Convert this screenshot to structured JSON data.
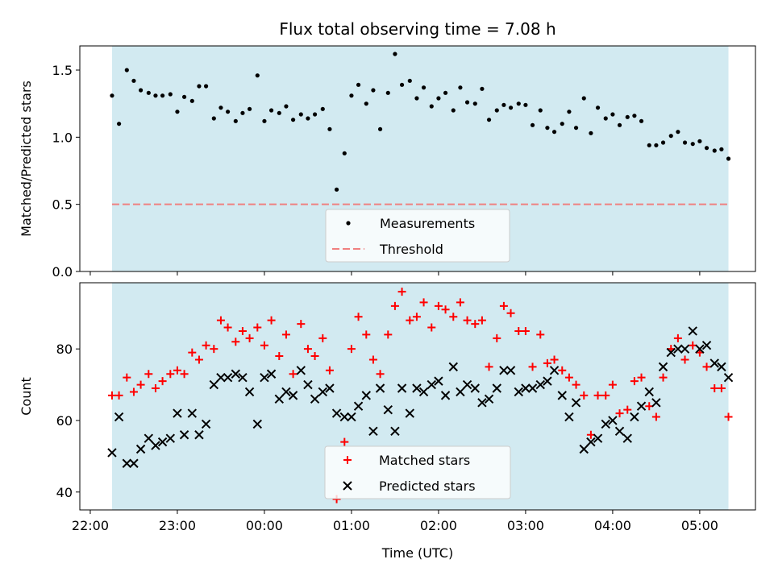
{
  "title": "Flux total observing time = 7.08 h",
  "colors": {
    "shade": "#add8e6",
    "measurement": "#000000",
    "threshold": "#f08080",
    "matched": "#ff0000",
    "predicted": "#000000"
  },
  "chart_data": [
    {
      "type": "scatter",
      "ylabel": "Matched/Predicted stars",
      "ylim": [
        0,
        1.68
      ],
      "yticks": [
        0.0,
        0.5,
        1.0,
        1.5
      ],
      "ytick_labels": [
        "0.0",
        "0.5",
        "1.0",
        "1.5"
      ],
      "xlim": [
        -0.12,
        7.64
      ],
      "shade_x": [
        0.25,
        7.33
      ],
      "threshold": 0.5,
      "legend": {
        "position": "lower-center",
        "entries": [
          "Measurements",
          "Threshold"
        ]
      },
      "series": [
        {
          "name": "Measurements",
          "x": [
            0.25,
            0.33,
            0.42,
            0.5,
            0.58,
            0.67,
            0.75,
            0.83,
            0.92,
            1.0,
            1.08,
            1.17,
            1.25,
            1.33,
            1.42,
            1.5,
            1.58,
            1.67,
            1.75,
            1.83,
            1.92,
            2.0,
            2.08,
            2.17,
            2.25,
            2.33,
            2.42,
            2.5,
            2.58,
            2.67,
            2.75,
            2.83,
            2.92,
            3.0,
            3.08,
            3.17,
            3.25,
            3.33,
            3.42,
            3.5,
            3.58,
            3.67,
            3.75,
            3.83,
            3.92,
            4.0,
            4.08,
            4.17,
            4.25,
            4.33,
            4.42,
            4.5,
            4.58,
            4.67,
            4.75,
            4.83,
            4.92,
            5.0,
            5.08,
            5.17,
            5.25,
            5.33,
            5.42,
            5.5,
            5.58,
            5.67,
            5.75,
            5.83,
            5.92,
            6.0,
            6.08,
            6.17,
            6.25,
            6.33,
            6.42,
            6.5,
            6.58,
            6.67,
            6.75,
            6.83,
            6.92,
            7.0,
            7.08,
            7.17,
            7.25,
            7.33
          ],
          "y": [
            1.31,
            1.1,
            1.5,
            1.42,
            1.35,
            1.33,
            1.31,
            1.31,
            1.32,
            1.19,
            1.3,
            1.27,
            1.38,
            1.38,
            1.14,
            1.22,
            1.19,
            1.12,
            1.18,
            1.21,
            1.46,
            1.12,
            1.2,
            1.18,
            1.23,
            1.13,
            1.17,
            1.14,
            1.17,
            1.21,
            1.06,
            0.61,
            0.88,
            1.31,
            1.39,
            1.25,
            1.35,
            1.06,
            1.33,
            1.62,
            1.39,
            1.42,
            1.29,
            1.37,
            1.23,
            1.29,
            1.33,
            1.2,
            1.37,
            1.26,
            1.25,
            1.36,
            1.13,
            1.2,
            1.24,
            1.22,
            1.25,
            1.24,
            1.09,
            1.2,
            1.07,
            1.04,
            1.1,
            1.19,
            1.07,
            1.29,
            1.03,
            1.22,
            1.14,
            1.17,
            1.09,
            1.15,
            1.16,
            1.12,
            0.94,
            0.94,
            0.96,
            1.01,
            1.04,
            0.96,
            0.95,
            0.97,
            0.92,
            0.9,
            0.91,
            0.84
          ]
        }
      ]
    },
    {
      "type": "scatter",
      "ylabel": "Count",
      "xlabel": "Time (UTC)",
      "ylim": [
        35,
        98.5
      ],
      "yticks": [
        40,
        60,
        80
      ],
      "ytick_labels": [
        "40",
        "60",
        "80"
      ],
      "xlim": [
        -0.12,
        7.64
      ],
      "xticks": [
        0,
        1,
        2,
        3,
        4,
        5,
        6,
        7
      ],
      "xtick_labels": [
        "22:00",
        "23:00",
        "00:00",
        "01:00",
        "02:00",
        "03:00",
        "04:00",
        "05:00"
      ],
      "shade_x": [
        0.25,
        7.33
      ],
      "legend": {
        "position": "lower-center",
        "entries": [
          "Matched stars",
          "Predicted stars"
        ]
      },
      "series": [
        {
          "name": "Matched stars",
          "x": [
            0.25,
            0.33,
            0.42,
            0.5,
            0.58,
            0.67,
            0.75,
            0.83,
            0.92,
            1.0,
            1.08,
            1.17,
            1.25,
            1.33,
            1.42,
            1.5,
            1.58,
            1.67,
            1.75,
            1.83,
            1.92,
            2.0,
            2.08,
            2.17,
            2.25,
            2.33,
            2.42,
            2.5,
            2.58,
            2.67,
            2.75,
            2.83,
            2.92,
            3.0,
            3.08,
            3.17,
            3.25,
            3.33,
            3.42,
            3.5,
            3.58,
            3.67,
            3.75,
            3.83,
            3.92,
            4.0,
            4.08,
            4.17,
            4.25,
            4.33,
            4.42,
            4.5,
            4.58,
            4.67,
            4.75,
            4.83,
            4.92,
            5.0,
            5.08,
            5.17,
            5.25,
            5.33,
            5.42,
            5.5,
            5.58,
            5.67,
            5.75,
            5.83,
            5.92,
            6.0,
            6.08,
            6.17,
            6.25,
            6.33,
            6.42,
            6.5,
            6.58,
            6.67,
            6.75,
            6.83,
            6.92,
            7.0,
            7.08,
            7.17,
            7.25,
            7.33
          ],
          "y": [
            67,
            67,
            72,
            68,
            70,
            73,
            69,
            71,
            73,
            74,
            73,
            79,
            77,
            81,
            80,
            88,
            86,
            82,
            85,
            83,
            86,
            81,
            88,
            78,
            84,
            73,
            87,
            80,
            78,
            83,
            74,
            38,
            54,
            80,
            89,
            84,
            77,
            73,
            84,
            92,
            96,
            88,
            89,
            93,
            86,
            92,
            91,
            89,
            93,
            88,
            87,
            88,
            75,
            83,
            92,
            90,
            85,
            85,
            75,
            84,
            76,
            77,
            74,
            72,
            70,
            67,
            56,
            67,
            67,
            70,
            62,
            63,
            71,
            72,
            64,
            61,
            72,
            80,
            83,
            77,
            81,
            79,
            75,
            69,
            69,
            61
          ]
        },
        {
          "name": "Predicted stars",
          "x": [
            0.25,
            0.33,
            0.42,
            0.5,
            0.58,
            0.67,
            0.75,
            0.83,
            0.92,
            1.0,
            1.08,
            1.17,
            1.25,
            1.33,
            1.42,
            1.5,
            1.58,
            1.67,
            1.75,
            1.83,
            1.92,
            2.0,
            2.08,
            2.17,
            2.25,
            2.33,
            2.42,
            2.5,
            2.58,
            2.67,
            2.75,
            2.83,
            2.92,
            3.0,
            3.08,
            3.17,
            3.25,
            3.33,
            3.42,
            3.5,
            3.58,
            3.67,
            3.75,
            3.83,
            3.92,
            4.0,
            4.08,
            4.17,
            4.25,
            4.33,
            4.42,
            4.5,
            4.58,
            4.67,
            4.75,
            4.83,
            4.92,
            5.0,
            5.08,
            5.17,
            5.25,
            5.33,
            5.42,
            5.5,
            5.58,
            5.67,
            5.75,
            5.83,
            5.92,
            6.0,
            6.08,
            6.17,
            6.25,
            6.33,
            6.42,
            6.5,
            6.58,
            6.67,
            6.75,
            6.83,
            6.92,
            7.0,
            7.08,
            7.17,
            7.25,
            7.33
          ],
          "y": [
            51,
            61,
            48,
            48,
            52,
            55,
            53,
            54,
            55,
            62,
            56,
            62,
            56,
            59,
            70,
            72,
            72,
            73,
            72,
            68,
            59,
            72,
            73,
            66,
            68,
            67,
            74,
            70,
            66,
            68,
            69,
            62,
            61,
            61,
            64,
            67,
            57,
            69,
            63,
            57,
            69,
            62,
            69,
            68,
            70,
            71,
            67,
            75,
            68,
            70,
            69,
            65,
            66,
            69,
            74,
            74,
            68,
            69,
            69,
            70,
            71,
            74,
            67,
            61,
            65,
            52,
            54,
            55,
            59,
            60,
            57,
            55,
            61,
            64,
            68,
            65,
            75,
            79,
            80,
            80,
            85,
            80,
            81,
            76,
            75,
            72
          ]
        }
      ]
    }
  ]
}
